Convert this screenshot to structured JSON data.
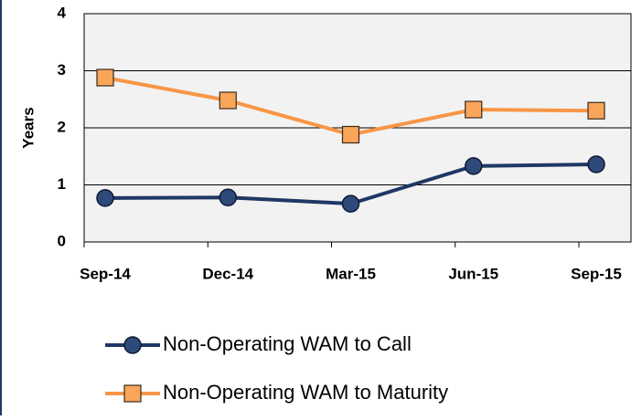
{
  "chart_data": {
    "type": "line",
    "y_label": "Years",
    "categories": [
      "Sep-14",
      "Dec-14",
      "Mar-15",
      "Jun-15",
      "Sep-15"
    ],
    "series": [
      {
        "name": "Non-Operating WAM to Call",
        "color": "#1f3864",
        "marker": "circle",
        "values": [
          0.77,
          0.78,
          0.67,
          1.33,
          1.36
        ]
      },
      {
        "name": "Non-Operating WAM to Maturity",
        "color": "#f79646",
        "marker": "square",
        "values": [
          2.88,
          2.48,
          1.88,
          2.32,
          2.3
        ]
      }
    ],
    "ylim": [
      0,
      4
    ],
    "yticks": [
      0,
      1,
      2,
      3,
      4
    ],
    "grid": true
  }
}
